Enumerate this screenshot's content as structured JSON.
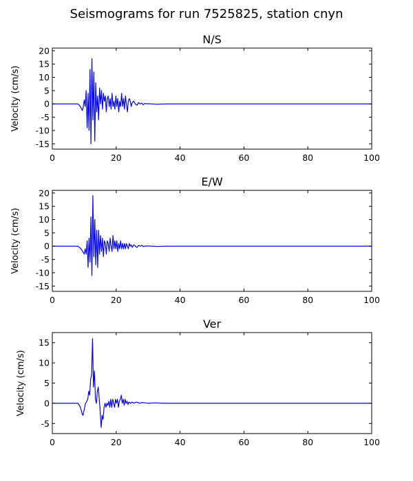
{
  "figure": {
    "title": "Seismograms for run 7525825, station cnyn"
  },
  "colors": {
    "trace": "#0000ff",
    "axes": "#000000",
    "background": "#ffffff"
  },
  "chart_data": [
    {
      "type": "line",
      "title": "N/S",
      "xlabel": "",
      "ylabel": "Velocity (cm/s)",
      "xlim": [
        0,
        100
      ],
      "ylim": [
        -17,
        21
      ],
      "xticks": [
        0,
        20,
        40,
        60,
        80,
        100
      ],
      "yticks": [
        -15,
        -10,
        -5,
        0,
        5,
        10,
        15,
        20
      ],
      "grid": false,
      "series": [
        {
          "x": [
            0,
            8,
            8.5,
            9,
            9.4,
            9.7,
            10,
            10.3,
            10.6,
            10.9,
            11.2,
            11.5,
            11.8,
            12.1,
            12.4,
            12.7,
            13.0,
            13.3,
            13.6,
            13.9,
            14.2,
            14.5,
            14.8,
            15.1,
            15.4,
            15.7,
            16.0,
            16.3,
            16.6,
            16.9,
            17.2,
            17.5,
            17.8,
            18.1,
            18.4,
            18.7,
            19.0,
            19.3,
            19.6,
            19.9,
            20.2,
            20.5,
            20.8,
            21.1,
            21.4,
            21.7,
            22.0,
            22.3,
            22.6,
            22.9,
            23.2,
            23.5,
            23.8,
            24.1,
            24.4,
            24.7,
            25.0,
            25.5,
            26.0,
            26.5,
            27.0,
            27.5,
            28.0,
            28.5,
            29.0,
            29.5,
            30.0,
            31,
            33,
            36,
            40,
            50,
            60,
            70,
            80,
            90,
            100
          ],
          "y": [
            0,
            0,
            -0.5,
            -1.5,
            -2.5,
            -1,
            1.5,
            -1,
            5,
            -9,
            4,
            -10,
            13,
            -15,
            17,
            -6,
            12,
            -14,
            8,
            -3,
            3,
            -6,
            6,
            0,
            5,
            -2,
            4,
            1,
            3,
            -3,
            2,
            3,
            -1,
            2,
            -2,
            4,
            -1,
            1,
            -2,
            3,
            -1,
            2,
            -3,
            1,
            -1,
            4,
            -1,
            2,
            -2,
            3,
            0,
            -3,
            1,
            2,
            1,
            -1,
            0.5,
            1,
            0,
            -0.5,
            0.5,
            0,
            0.3,
            -0.3,
            0.2,
            0,
            0.1,
            0,
            -0.1,
            0,
            0,
            0,
            0,
            0,
            0,
            0,
            0
          ]
        }
      ]
    },
    {
      "type": "line",
      "title": "E/W",
      "xlabel": "",
      "ylabel": "Velocity (cm/s)",
      "xlim": [
        0,
        100
      ],
      "ylim": [
        -17,
        21
      ],
      "xticks": [
        0,
        20,
        40,
        60,
        80,
        100
      ],
      "yticks": [
        -15,
        -10,
        -5,
        0,
        5,
        10,
        15,
        20
      ],
      "grid": false,
      "series": [
        {
          "x": [
            0,
            8,
            8.5,
            9,
            9.5,
            10,
            10.3,
            10.6,
            10.9,
            11.2,
            11.5,
            11.8,
            12.1,
            12.4,
            12.7,
            13.0,
            13.3,
            13.6,
            13.9,
            14.2,
            14.5,
            14.8,
            15.1,
            15.4,
            15.7,
            16.0,
            16.3,
            16.6,
            16.9,
            17.2,
            17.5,
            17.8,
            18.1,
            18.4,
            18.7,
            19.0,
            19.3,
            19.6,
            19.9,
            20.2,
            20.5,
            20.8,
            21.1,
            21.4,
            21.7,
            22.0,
            22.3,
            22.6,
            22.9,
            23.2,
            23.5,
            23.8,
            24.1,
            24.4,
            24.7,
            25.0,
            25.5,
            26.0,
            26.5,
            27.0,
            27.5,
            28.0,
            28.5,
            29.0,
            29.5,
            30.0,
            31,
            33,
            36,
            40,
            50,
            60,
            70,
            80,
            90,
            100
          ],
          "y": [
            0,
            0,
            -0.5,
            -1,
            -2,
            -3,
            -1,
            -3,
            2,
            -8,
            3,
            -6,
            11,
            -11,
            19,
            -4,
            10,
            -7,
            6,
            -8,
            6,
            -3,
            4,
            -2,
            3,
            -4,
            2,
            1,
            -3,
            2,
            1,
            -2,
            3,
            0,
            -2,
            4,
            -1,
            2,
            -1,
            2,
            -2,
            1,
            -1,
            2,
            -1,
            1,
            -1,
            1,
            -1,
            1,
            0,
            -1,
            1,
            0,
            0.5,
            -0.5,
            0.5,
            0,
            -0.5,
            0.3,
            0,
            0.3,
            -0.2,
            0.1,
            0,
            0.1,
            0,
            -0.1,
            0,
            0,
            0,
            0,
            0,
            0,
            0,
            0
          ]
        }
      ]
    },
    {
      "type": "line",
      "title": "Ver",
      "xlabel": "",
      "ylabel": "Velocity (cm/s)",
      "xlim": [
        0,
        100
      ],
      "ylim": [
        -7.5,
        17.5
      ],
      "xticks": [
        0,
        20,
        40,
        60,
        80,
        100
      ],
      "yticks": [
        -5,
        0,
        5,
        10,
        15
      ],
      "grid": false,
      "series": [
        {
          "x": [
            0,
            8,
            8.5,
            9,
            9.3,
            9.6,
            10,
            10.4,
            10.8,
            11.1,
            11.4,
            11.7,
            12.0,
            12.3,
            12.6,
            12.9,
            13.2,
            13.5,
            13.8,
            14.1,
            14.4,
            14.7,
            15.0,
            15.3,
            15.6,
            15.9,
            16.2,
            16.5,
            16.8,
            17.1,
            17.4,
            17.7,
            18.0,
            18.3,
            18.6,
            18.9,
            19.2,
            19.5,
            19.8,
            20.1,
            20.4,
            20.7,
            21.0,
            21.3,
            21.6,
            21.9,
            22.2,
            22.5,
            22.8,
            23.1,
            23.4,
            23.7,
            24.0,
            24.5,
            25.0,
            25.5,
            26.0,
            26.5,
            27.0,
            27.5,
            28.0,
            29,
            30,
            32,
            35,
            40,
            50,
            60,
            70,
            80,
            90,
            100
          ],
          "y": [
            0,
            0,
            -0.5,
            -1.5,
            -2.5,
            -3,
            -1.5,
            0,
            0.5,
            1,
            3,
            2,
            6,
            7,
            16,
            4,
            8,
            1,
            0,
            3,
            4,
            1,
            -2,
            -6,
            -3,
            -4,
            -1,
            0,
            -1,
            0,
            -0.5,
            0.5,
            -1,
            1,
            -1,
            1,
            0,
            -1,
            1,
            0,
            1,
            -1,
            0.5,
            1,
            2,
            0,
            1,
            -0.5,
            1,
            0,
            0.5,
            -0.3,
            0.3,
            0,
            0.3,
            0,
            0.2,
            0.3,
            0.1,
            0,
            0.2,
            0.1,
            0,
            0.1,
            0,
            0,
            0,
            0,
            0,
            0,
            0,
            0
          ]
        }
      ]
    }
  ]
}
